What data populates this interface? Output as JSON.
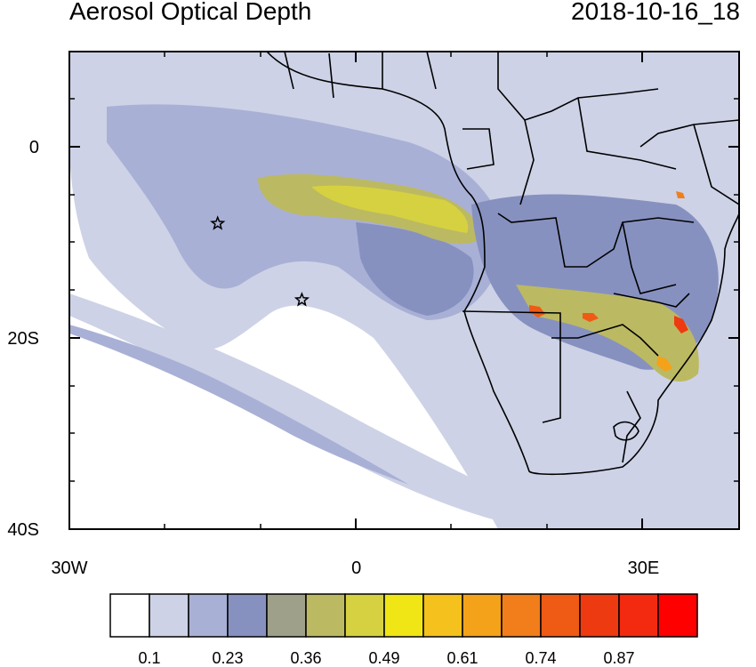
{
  "header": {
    "title": "Aerosol Optical Depth",
    "timestamp": "2018-10-16_18"
  },
  "axes": {
    "y_ticks": [
      {
        "value": 0,
        "label": "0"
      },
      {
        "value": -20,
        "label": "20S"
      },
      {
        "value": -40,
        "label": "40S"
      }
    ],
    "x_ticks": [
      {
        "value": -30,
        "label": "30W"
      },
      {
        "value": 0,
        "label": "0"
      },
      {
        "value": 30,
        "label": "30E"
      }
    ],
    "lon_range": [
      -30,
      40
    ],
    "lat_range": [
      -40,
      10
    ]
  },
  "markers": [
    {
      "name": "star-marker",
      "lon": -14.5,
      "lat": -8
    },
    {
      "name": "star-marker",
      "lon": -5.7,
      "lat": -16
    }
  ],
  "colorbar": {
    "colors": [
      "#ffffff",
      "#cdd2e6",
      "#a9b0d6",
      "#8791c0",
      "#9ea089",
      "#bcb963",
      "#d6d140",
      "#f0e616",
      "#f5c11c",
      "#f4a219",
      "#f17e1a",
      "#ef5b15",
      "#ee3a10",
      "#f32a0f",
      "#fe0000"
    ],
    "labels": [
      "0.1",
      "0.23",
      "0.36",
      "0.49",
      "0.61",
      "0.74",
      "0.87"
    ]
  },
  "colors": {
    "low": "#cdd2e6",
    "mid": "#8791c0",
    "high_yellow": "#d6d140",
    "hot": "#ef5b15"
  }
}
